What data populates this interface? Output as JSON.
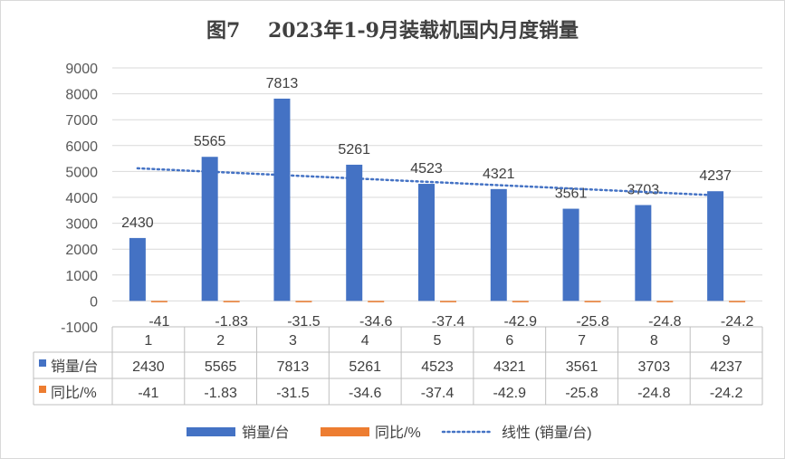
{
  "chart_data": {
    "type": "bar",
    "title": "图7    2023年1-9月装载机国内月度销量",
    "categories": [
      "1",
      "2",
      "3",
      "4",
      "5",
      "6",
      "7",
      "8",
      "9"
    ],
    "series": [
      {
        "name": "销量/台",
        "color": "#4472c4",
        "values": [
          2430,
          5565,
          7813,
          5261,
          4523,
          4321,
          3561,
          3703,
          4237
        ],
        "labels": [
          "2430",
          "5565",
          "7813",
          "5261",
          "4523",
          "4321",
          "3561",
          "3703",
          "4237"
        ]
      },
      {
        "name": "同比/%",
        "color": "#ed7d31",
        "values": [
          -41,
          -1.83,
          -31.5,
          -34.6,
          -37.4,
          -42.9,
          -25.8,
          -24.8,
          -24.2
        ],
        "labels": [
          "-41",
          "-1.83",
          "-31.5",
          "-34.6",
          "-37.4",
          "-42.9",
          "-25.8",
          "-24.8",
          "-24.2"
        ]
      }
    ],
    "trendline": {
      "name": "线性 (销量/台)",
      "of": "销量/台",
      "color": "#4472c4"
    },
    "ylim": [
      -1000,
      9000
    ],
    "yticks": [
      -1000,
      0,
      1000,
      2000,
      3000,
      4000,
      5000,
      6000,
      7000,
      8000,
      9000
    ],
    "ytick_labels": [
      "-1000",
      "0",
      "1000",
      "2000",
      "3000",
      "4000",
      "5000",
      "6000",
      "7000",
      "8000",
      "9000"
    ],
    "grid": true,
    "legend": "bottom",
    "data_table": true
  }
}
